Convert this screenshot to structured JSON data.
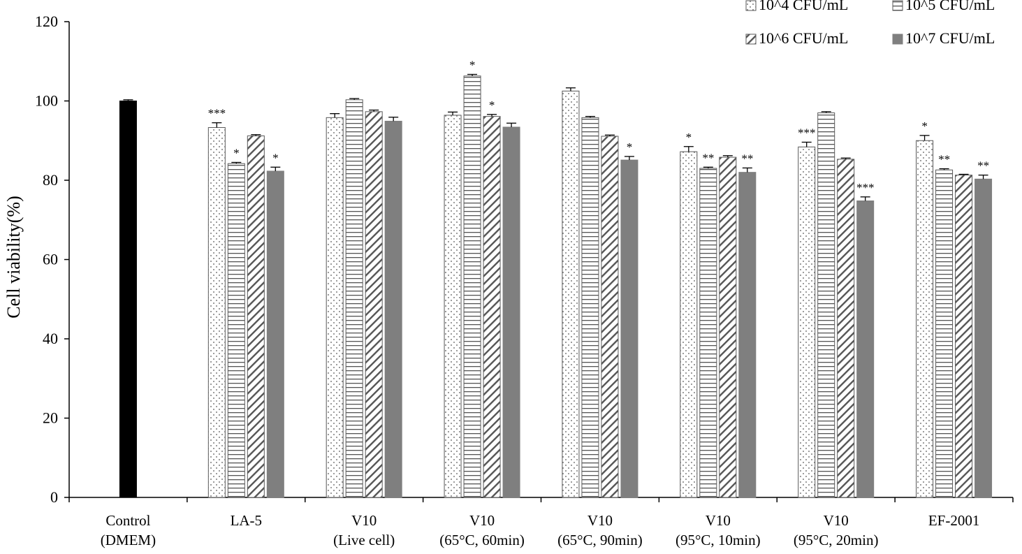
{
  "chart_data": {
    "type": "bar",
    "ylabel": "Cell viability(%)",
    "xlabel": "",
    "ylim": [
      0,
      120
    ],
    "yticks": [
      0,
      20,
      40,
      60,
      80,
      100,
      120
    ],
    "grid": false,
    "legend_position": "top-right",
    "control": {
      "label": [
        "Control",
        "(DMEM)"
      ],
      "value": 100.0,
      "error": 0.3,
      "color": "#000000"
    },
    "categories": [
      [
        "LA-5"
      ],
      [
        "V10",
        "(Live cell)"
      ],
      [
        "V10",
        "(65°C, 60min)"
      ],
      [
        "V10",
        "(65°C, 90min)"
      ],
      [
        "V10",
        "(95°C, 10min)"
      ],
      [
        "V10",
        "(95°C, 20min)"
      ],
      [
        "EF-2001"
      ]
    ],
    "series": [
      {
        "name": "10^4 CFU/mL",
        "pattern": "dots",
        "values": [
          93.3,
          95.8,
          96.4,
          102.5,
          87.2,
          88.4,
          90.0
        ],
        "errors": [
          1.2,
          1.0,
          0.8,
          0.8,
          1.3,
          1.2,
          1.3
        ],
        "annotations": [
          "***",
          "",
          "",
          "",
          "*",
          "***",
          "*"
        ]
      },
      {
        "name": "10^5 CFU/mL",
        "pattern": "horizontal",
        "values": [
          84.2,
          100.3,
          106.3,
          95.8,
          83.0,
          97.0,
          82.6
        ],
        "errors": [
          0.3,
          0.3,
          0.4,
          0.3,
          0.3,
          0.3,
          0.3
        ],
        "annotations": [
          "*",
          "",
          "*",
          "",
          "**",
          "",
          "**"
        ]
      },
      {
        "name": "10^6 CFU/mL",
        "pattern": "diagonal",
        "values": [
          91.2,
          97.3,
          96.1,
          91.1,
          85.8,
          85.3,
          81.3
        ],
        "errors": [
          0.3,
          0.4,
          0.5,
          0.3,
          0.4,
          0.3,
          0.2
        ],
        "annotations": [
          "",
          "",
          "*",
          "",
          "",
          "",
          ""
        ]
      },
      {
        "name": "10^7 CFU/mL",
        "pattern": "solid",
        "values": [
          82.3,
          94.9,
          93.4,
          85.1,
          82.0,
          74.8,
          80.3
        ],
        "errors": [
          1.0,
          1.0,
          1.0,
          0.9,
          1.1,
          1.0,
          1.0
        ],
        "annotations": [
          "*",
          "",
          "",
          "*",
          "**",
          "***",
          "**"
        ]
      }
    ],
    "colors": {
      "control": "#000000",
      "solid": "#7f7f7f",
      "pattern": "#595959",
      "axis": "#000000"
    }
  }
}
